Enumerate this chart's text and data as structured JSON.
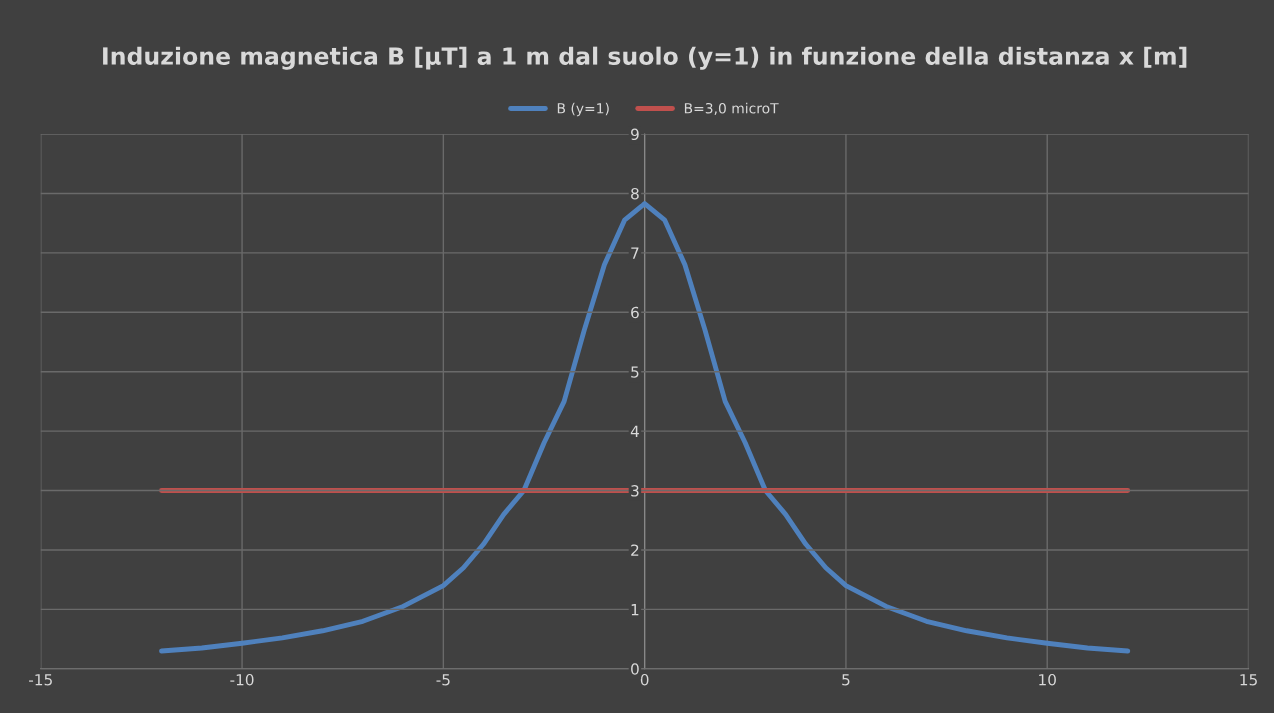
{
  "chart_data": {
    "type": "line",
    "title": "Induzione magnetica B [µT] a 1 m dal suolo (y=1) in funzione della distanza x [m]",
    "series": [
      {
        "name": "B (y=1)",
        "color": "#4f81bd",
        "x": [
          -12,
          -11,
          -10,
          -9,
          -8,
          -7,
          -6,
          -5,
          -4.5,
          -4,
          -3.5,
          -3,
          -2.5,
          -2,
          -1.5,
          -1,
          -0.5,
          0,
          0.5,
          1,
          1.5,
          2,
          2.5,
          3,
          3.5,
          4,
          4.5,
          5,
          6,
          7,
          8,
          9,
          10,
          11,
          12
        ],
        "values": [
          0.3,
          0.35,
          0.43,
          0.52,
          0.64,
          0.8,
          1.05,
          1.4,
          1.7,
          2.1,
          2.6,
          3.0,
          3.8,
          4.5,
          5.7,
          6.8,
          7.55,
          7.83,
          7.55,
          6.8,
          5.7,
          4.5,
          3.8,
          3.0,
          2.6,
          2.1,
          1.7,
          1.4,
          1.05,
          0.8,
          0.64,
          0.52,
          0.43,
          0.35,
          0.3
        ]
      },
      {
        "name": "B=3,0 microT",
        "color": "#c0504d",
        "x": [
          -12,
          12
        ],
        "values": [
          3,
          3
        ]
      }
    ],
    "xlim": [
      -15,
      15
    ],
    "xticks": [
      -15,
      -10,
      -5,
      0,
      5,
      10,
      15
    ],
    "ylim": [
      0,
      9
    ],
    "yticks": [
      0,
      1,
      2,
      3,
      4,
      5,
      6,
      7,
      8,
      9
    ],
    "grid": true,
    "legend": "top",
    "marker": "none",
    "line_style": "solid"
  }
}
